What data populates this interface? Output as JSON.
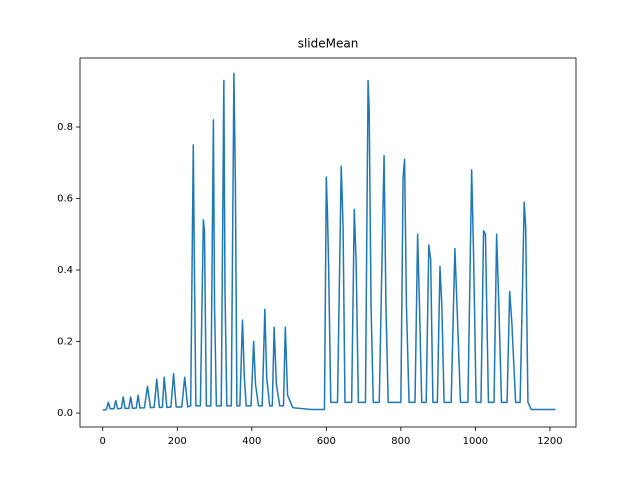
{
  "chart_data": {
    "type": "line",
    "title": "slideMean",
    "color": "#1f77b4",
    "x": [
      0,
      10,
      15,
      20,
      30,
      35,
      40,
      50,
      55,
      60,
      70,
      75,
      80,
      90,
      95,
      100,
      112,
      120,
      128,
      138,
      145,
      152,
      160,
      165,
      172,
      183,
      190,
      197,
      212,
      220,
      228,
      236,
      243,
      246,
      250,
      262,
      270,
      273,
      278,
      290,
      297,
      300,
      305,
      318,
      325,
      328,
      333,
      345,
      352,
      356,
      360,
      368,
      375,
      380,
      385,
      398,
      405,
      410,
      418,
      428,
      435,
      440,
      448,
      455,
      460,
      466,
      475,
      485,
      490,
      496,
      510,
      560,
      595,
      600,
      603,
      606,
      612,
      630,
      640,
      645,
      650,
      668,
      675,
      680,
      686,
      705,
      712,
      715,
      720,
      726,
      742,
      752,
      755,
      760,
      766,
      800,
      806,
      810,
      815,
      822,
      838,
      845,
      850,
      856,
      868,
      875,
      880,
      886,
      898,
      905,
      910,
      916,
      935,
      945,
      950,
      960,
      980,
      990,
      995,
      1002,
      1015,
      1022,
      1027,
      1035,
      1050,
      1057,
      1063,
      1070,
      1085,
      1092,
      1098,
      1108,
      1120,
      1128,
      1131,
      1135,
      1141,
      1150,
      1200,
      1215
    ],
    "values": [
      0.008,
      0.01,
      0.03,
      0.012,
      0.012,
      0.035,
      0.012,
      0.013,
      0.045,
      0.013,
      0.013,
      0.045,
      0.013,
      0.014,
      0.05,
      0.014,
      0.015,
      0.075,
      0.015,
      0.016,
      0.095,
      0.016,
      0.016,
      0.1,
      0.016,
      0.017,
      0.11,
      0.017,
      0.017,
      0.1,
      0.017,
      0.02,
      0.75,
      0.4,
      0.02,
      0.02,
      0.54,
      0.51,
      0.02,
      0.02,
      0.82,
      0.3,
      0.02,
      0.02,
      0.93,
      0.35,
      0.02,
      0.02,
      0.95,
      0.64,
      0.02,
      0.02,
      0.26,
      0.1,
      0.02,
      0.02,
      0.2,
      0.08,
      0.02,
      0.02,
      0.29,
      0.1,
      0.02,
      0.02,
      0.24,
      0.08,
      0.02,
      0.02,
      0.24,
      0.05,
      0.015,
      0.01,
      0.01,
      0.66,
      0.56,
      0.42,
      0.03,
      0.03,
      0.69,
      0.52,
      0.03,
      0.03,
      0.57,
      0.42,
      0.03,
      0.03,
      0.93,
      0.85,
      0.3,
      0.03,
      0.03,
      0.57,
      0.72,
      0.3,
      0.03,
      0.03,
      0.66,
      0.71,
      0.3,
      0.03,
      0.03,
      0.5,
      0.3,
      0.03,
      0.03,
      0.47,
      0.43,
      0.03,
      0.03,
      0.41,
      0.3,
      0.03,
      0.03,
      0.46,
      0.32,
      0.03,
      0.03,
      0.68,
      0.45,
      0.03,
      0.03,
      0.51,
      0.5,
      0.03,
      0.03,
      0.5,
      0.3,
      0.03,
      0.03,
      0.34,
      0.25,
      0.03,
      0.03,
      0.43,
      0.59,
      0.52,
      0.03,
      0.01,
      0.01,
      0.01
    ],
    "xlim": [
      -61,
      1270
    ],
    "ylim": [
      -0.039,
      0.993
    ],
    "xticks": [
      0,
      200,
      400,
      600,
      800,
      1000,
      1200
    ],
    "yticks": [
      {
        "value": 0,
        "label": "0.0"
      },
      0.2,
      0.4,
      0.6,
      0.8
    ]
  }
}
